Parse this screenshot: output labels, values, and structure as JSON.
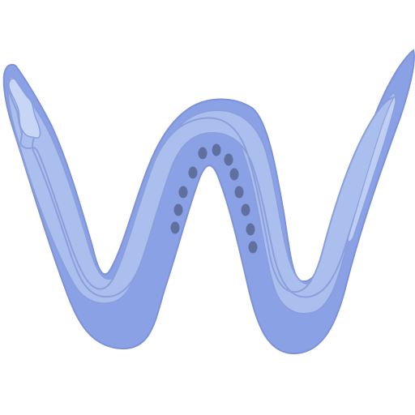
{
  "graphic": {
    "icon": "stylized-letter-w-icon",
    "colors": {
      "background": "#ffffff",
      "outer_band": "#8ba1e6",
      "outer_stroke": "#7d92d9",
      "middle_band": "#aabfee",
      "inner_band": "#c8d6f5",
      "dots": "#5f6f9e"
    },
    "dot_count": 13
  }
}
